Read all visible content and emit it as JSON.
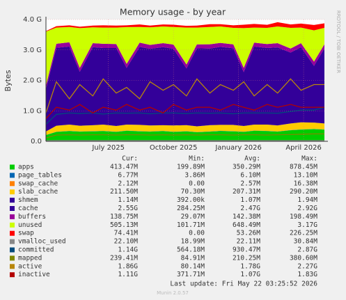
{
  "chart_data": {
    "type": "area",
    "title": "Memory usage - by year",
    "ylabel": "Bytes",
    "side_text": "RRDTOOL / TOBI OETIKER",
    "xlim": [
      2025.26,
      2026.33
    ],
    "xticks": [
      {
        "value": 2025.5,
        "label": "July 2025"
      },
      {
        "value": 2025.75,
        "label": "October 2025"
      },
      {
        "value": 2026.0,
        "label": "January 2026"
      },
      {
        "value": 2026.25,
        "label": "April 2026"
      }
    ],
    "ylim": [
      0,
      4294967296
    ],
    "yticks": [
      {
        "value": 0,
        "label": "0.0"
      },
      {
        "value": 1073741824,
        "label": "1.0 G"
      },
      {
        "value": 2147483648,
        "label": "2.0 G"
      },
      {
        "value": 3221225472,
        "label": "3.0 G"
      },
      {
        "value": 4294967296,
        "label": "4.0 G"
      }
    ],
    "grid": true,
    "x": [
      2025.26,
      2025.3,
      2025.35,
      2025.39,
      2025.44,
      2025.48,
      2025.53,
      2025.57,
      2025.62,
      2025.66,
      2025.71,
      2025.75,
      2025.8,
      2025.84,
      2025.89,
      2025.93,
      2025.98,
      2026.02,
      2026.06,
      2026.11,
      2026.15,
      2026.2,
      2026.24,
      2026.29,
      2026.33
    ],
    "series": [
      {
        "name": "apps",
        "color": "#00cc00",
        "stacked": true,
        "values": [
          220000000.0,
          330000000.0,
          360000000.0,
          340000000.0,
          350000000.0,
          360000000.0,
          330000000.0,
          370000000.0,
          350000000.0,
          340000000.0,
          360000000.0,
          330000000.0,
          350000000.0,
          320000000.0,
          340000000.0,
          360000000.0,
          350000000.0,
          330000000.0,
          370000000.0,
          360000000.0,
          340000000.0,
          390000000.0,
          410000000.0,
          430000000.0,
          410000000.0
        ]
      },
      {
        "name": "page_tables",
        "color": "#0066b3",
        "stacked": true,
        "values": [
          5000000.0,
          6000000.0,
          6000000.0,
          7000000.0,
          6000000.0,
          6000000.0,
          7000000.0,
          6000000.0,
          6000000.0,
          7000000.0,
          6000000.0,
          6000000.0,
          7000000.0,
          6000000.0,
          6000000.0,
          7000000.0,
          6000000.0,
          6000000.0,
          7000000.0,
          6000000.0,
          6000000.0,
          7000000.0,
          7000000.0,
          7000000.0,
          7000000.0
        ]
      },
      {
        "name": "swap_cache",
        "color": "#ff8000",
        "stacked": true,
        "values": [
          2000000.0,
          2000000.0,
          3000000.0,
          2000000.0,
          2000000.0,
          3000000.0,
          2000000.0,
          2000000.0,
          3000000.0,
          2000000.0,
          2000000.0,
          3000000.0,
          2000000.0,
          2000000.0,
          3000000.0,
          2000000.0,
          2000000.0,
          3000000.0,
          2000000.0,
          2000000.0,
          3000000.0,
          2000000.0,
          2000000.0,
          3000000.0,
          2000000.0
        ]
      },
      {
        "name": "slab_cache",
        "color": "#ffcc00",
        "stacked": true,
        "values": [
          120000000.0,
          210000000.0,
          220000000.0,
          200000000.0,
          210000000.0,
          220000000.0,
          200000000.0,
          210000000.0,
          220000000.0,
          210000000.0,
          200000000.0,
          220000000.0,
          210000000.0,
          200000000.0,
          220000000.0,
          210000000.0,
          220000000.0,
          200000000.0,
          210000000.0,
          220000000.0,
          210000000.0,
          230000000.0,
          250000000.0,
          220000000.0,
          210000000.0
        ]
      },
      {
        "name": "shmem",
        "color": "#330099",
        "stacked": true,
        "values": [
          1000000.0,
          1000000.0,
          1000000.0,
          1000000.0,
          1000000.0,
          1000000.0,
          1000000.0,
          1000000.0,
          1000000.0,
          1000000.0,
          1000000.0,
          1000000.0,
          1000000.0,
          1000000.0,
          1000000.0,
          1000000.0,
          1000000.0,
          1000000.0,
          1000000.0,
          1000000.0,
          1000000.0,
          1000000.0,
          1000000.0,
          1000000.0,
          1000000.0
        ]
      },
      {
        "name": "cache",
        "color": "#330099",
        "stacked": true,
        "values": [
          1500000000.0,
          2750000000.0,
          2750000000.0,
          1900000000.0,
          2750000000.0,
          2700000000.0,
          2750000000.0,
          2000000000.0,
          2750000000.0,
          2700000000.0,
          2750000000.0,
          2700000000.0,
          2000000000.0,
          2750000000.0,
          2700000000.0,
          2750000000.0,
          2700000000.0,
          1900000000.0,
          2750000000.0,
          2700000000.0,
          2750000000.0,
          2500000000.0,
          2650000000.0,
          2000000000.0,
          2650000000.0
        ]
      },
      {
        "name": "buffers",
        "color": "#990099",
        "stacked": true,
        "values": [
          120000000.0,
          140000000.0,
          150000000.0,
          140000000.0,
          140000000.0,
          150000000.0,
          140000000.0,
          140000000.0,
          150000000.0,
          140000000.0,
          140000000.0,
          150000000.0,
          140000000.0,
          140000000.0,
          150000000.0,
          140000000.0,
          140000000.0,
          150000000.0,
          140000000.0,
          140000000.0,
          150000000.0,
          140000000.0,
          140000000.0,
          150000000.0,
          140000000.0
        ]
      },
      {
        "name": "unused",
        "color": "#ccff00",
        "stacked": true,
        "values": [
          1900000000.0,
          570000000.0,
          540000000.0,
          1400000000.0,
          560000000.0,
          570000000.0,
          580000000.0,
          1300000000.0,
          550000000.0,
          620000000.0,
          590000000.0,
          620000000.0,
          1300000000.0,
          590000000.0,
          610000000.0,
          580000000.0,
          580000000.0,
          1400000000.0,
          530000000.0,
          570000000.0,
          590000000.0,
          730000000.0,
          550000000.0,
          1100000000.0,
          580000000.0
        ]
      },
      {
        "name": "swap",
        "color": "#ff0000",
        "stacked": true,
        "values": [
          20000000.0,
          50000000.0,
          60000000.0,
          50000000.0,
          60000000.0,
          80000000.0,
          70000000.0,
          60000000.0,
          90000000.0,
          60000000.0,
          70000000.0,
          80000000.0,
          60000000.0,
          70000000.0,
          100000000.0,
          80000000.0,
          90000000.0,
          120000000.0,
          130000000.0,
          110000000.0,
          150000000.0,
          120000000.0,
          140000000.0,
          190000000.0,
          160000000.0
        ]
      },
      {
        "name": "vmalloc_used",
        "color": "#888888",
        "stacked": false,
        "values": [
          20000000.0,
          24000000.0,
          23000000.0,
          24000000.0,
          23000000.0,
          24000000.0,
          23000000.0,
          24000000.0,
          23000000.0,
          24000000.0,
          23000000.0,
          24000000.0,
          23000000.0,
          24000000.0,
          23000000.0,
          24000000.0,
          23000000.0,
          24000000.0,
          23000000.0,
          24000000.0,
          23000000.0,
          24000000.0,
          23000000.0,
          24000000.0,
          24000000.0
        ]
      },
      {
        "name": "committed",
        "color": "#024b7c",
        "stacked": false,
        "values": [
          600000000.0,
          950000000.0,
          1000000000.0,
          980000000.0,
          1000000000.0,
          960000000.0,
          1000000000.0,
          990000000.0,
          1000000000.0,
          970000000.0,
          1000000000.0,
          1000000000.0,
          980000000.0,
          1000000000.0,
          990000000.0,
          1000000000.0,
          970000000.0,
          1000000000.0,
          1000000000.0,
          1000000000.0,
          990000000.0,
          1050000000.0,
          1100000000.0,
          1100000000.0,
          1200000000.0
        ]
      },
      {
        "name": "mapped",
        "color": "#7f8900",
        "stacked": false,
        "values": [
          120000000.0,
          220000000.0,
          230000000.0,
          220000000.0,
          230000000.0,
          230000000.0,
          220000000.0,
          230000000.0,
          230000000.0,
          220000000.0,
          230000000.0,
          220000000.0,
          230000000.0,
          220000000.0,
          230000000.0,
          230000000.0,
          220000000.0,
          230000000.0,
          230000000.0,
          220000000.0,
          230000000.0,
          240000000.0,
          250000000.0,
          260000000.0,
          260000000.0
        ]
      },
      {
        "name": "active",
        "color": "#b8860b",
        "stacked": false,
        "values": [
          1000000000.0,
          2100000000.0,
          1500000000.0,
          2000000000.0,
          1600000000.0,
          2200000000.0,
          1700000000.0,
          1900000000.0,
          1500000000.0,
          2100000000.0,
          1800000000.0,
          2000000000.0,
          1600000000.0,
          2200000000.0,
          1700000000.0,
          2000000000.0,
          1800000000.0,
          2100000000.0,
          1600000000.0,
          2000000000.0,
          1700000000.0,
          2200000000.0,
          1800000000.0,
          2000000000.0,
          2000000000.0
        ]
      },
      {
        "name": "inactive",
        "color": "#b30000",
        "stacked": false,
        "values": [
          800000000.0,
          1200000000.0,
          1100000000.0,
          1300000000.0,
          1000000000.0,
          1200000000.0,
          1100000000.0,
          1300000000.0,
          1100000000.0,
          1200000000.0,
          1000000000.0,
          1300000000.0,
          1100000000.0,
          1200000000.0,
          1200000000.0,
          1100000000.0,
          1300000000.0,
          1200000000.0,
          1100000000.0,
          1300000000.0,
          1200000000.0,
          1300000000.0,
          1200000000.0,
          1200000000.0,
          1200000000.0
        ]
      }
    ],
    "stats_header": [
      "Cur:",
      "Min:",
      "Avg:",
      "Max:"
    ],
    "stats": [
      [
        "413.47M",
        "199.89M",
        "350.29M",
        "878.45M"
      ],
      [
        "6.77M",
        "3.86M",
        "6.10M",
        "13.10M"
      ],
      [
        "2.12M",
        "0.00",
        "2.57M",
        "16.38M"
      ],
      [
        "211.50M",
        "70.30M",
        "207.31M",
        "290.20M"
      ],
      [
        "1.14M",
        "392.00k",
        "1.07M",
        "1.94M"
      ],
      [
        "2.55G",
        "284.25M",
        "2.47G",
        "2.92G"
      ],
      [
        "138.75M",
        "29.07M",
        "142.38M",
        "198.49M"
      ],
      [
        "505.13M",
        "101.71M",
        "648.49M",
        "3.17G"
      ],
      [
        "74.41M",
        "0.00",
        "53.26M",
        "226.25M"
      ],
      [
        "22.10M",
        "18.99M",
        "22.11M",
        "30.84M"
      ],
      [
        "1.14G",
        "564.18M",
        "930.47M",
        "2.87G"
      ],
      [
        "239.41M",
        "84.91M",
        "210.25M",
        "380.60M"
      ],
      [
        "1.86G",
        "80.14M",
        "1.78G",
        "2.27G"
      ],
      [
        "1.11G",
        "371.71M",
        "1.07G",
        "1.83G"
      ]
    ],
    "last_update": "Last update: Fri May 22 03:25:52 2026",
    "footer": "Munin 2.0.57"
  }
}
